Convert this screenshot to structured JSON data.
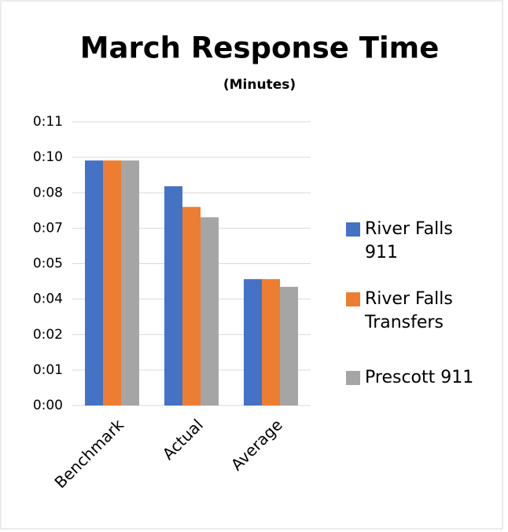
{
  "chart_data": {
    "type": "bar",
    "title": "March Response Time",
    "subtitle": "(Minutes)",
    "categories": [
      "Benchmark",
      "Actual",
      "Average"
    ],
    "series": [
      {
        "name": "River Falls 911",
        "color": "#4472c4",
        "values": [
          9.5,
          8.5,
          4.9
        ]
      },
      {
        "name": "River Falls Transfers",
        "color": "#ed7d31",
        "values": [
          9.5,
          7.7,
          4.9
        ]
      },
      {
        "name": "Prescott 911",
        "color": "#a5a5a5",
        "values": [
          9.5,
          7.3,
          4.6
        ]
      }
    ],
    "ylim": [
      0,
      11
    ],
    "yticks": [
      {
        "value": 0,
        "label": "0:00"
      },
      {
        "value": 1.375,
        "label": "0:01"
      },
      {
        "value": 2.75,
        "label": "0:02"
      },
      {
        "value": 4.125,
        "label": "0:04"
      },
      {
        "value": 5.5,
        "label": "0:05"
      },
      {
        "value": 6.875,
        "label": "0:07"
      },
      {
        "value": 8.25,
        "label": "0:08"
      },
      {
        "value": 9.625,
        "label": "0:10"
      },
      {
        "value": 11,
        "label": "0:11"
      }
    ],
    "grid": true,
    "legend": "right"
  }
}
